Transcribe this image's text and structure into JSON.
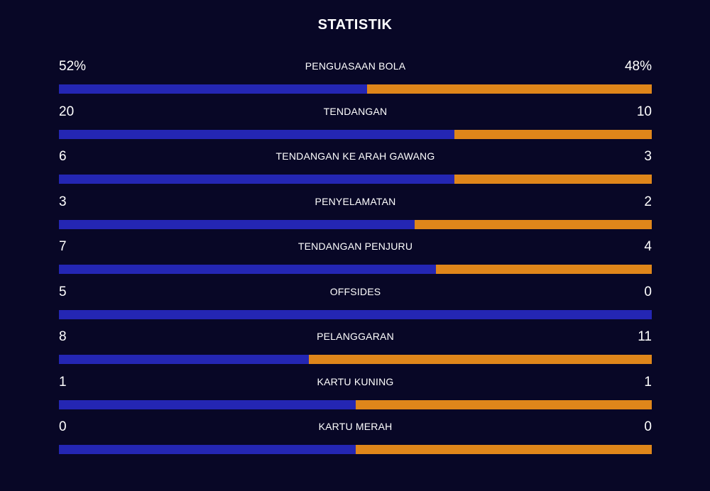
{
  "title": "STATISTIK",
  "colors": {
    "background": "#080726",
    "home": "#2426b3",
    "away": "#df861a"
  },
  "stats": [
    {
      "label": "PENGUASAAN BOLA",
      "home": "52%",
      "away": "48%",
      "home_value": 52,
      "away_value": 48
    },
    {
      "label": "TENDANGAN",
      "home": "20",
      "away": "10",
      "home_value": 20,
      "away_value": 10
    },
    {
      "label": "TENDANGAN KE ARAH GAWANG",
      "home": "6",
      "away": "3",
      "home_value": 6,
      "away_value": 3
    },
    {
      "label": "PENYELAMATAN",
      "home": "3",
      "away": "2",
      "home_value": 3,
      "away_value": 2
    },
    {
      "label": "TENDANGAN PENJURU",
      "home": "7",
      "away": "4",
      "home_value": 7,
      "away_value": 4
    },
    {
      "label": "OFFSIDES",
      "home": "5",
      "away": "0",
      "home_value": 5,
      "away_value": 0
    },
    {
      "label": "PELANGGARAN",
      "home": "8",
      "away": "11",
      "home_value": 8,
      "away_value": 11
    },
    {
      "label": "KARTU KUNING",
      "home": "1",
      "away": "1",
      "home_value": 1,
      "away_value": 1
    },
    {
      "label": "KARTU MERAH",
      "home": "0",
      "away": "0",
      "home_value": 0,
      "away_value": 0
    }
  ]
}
